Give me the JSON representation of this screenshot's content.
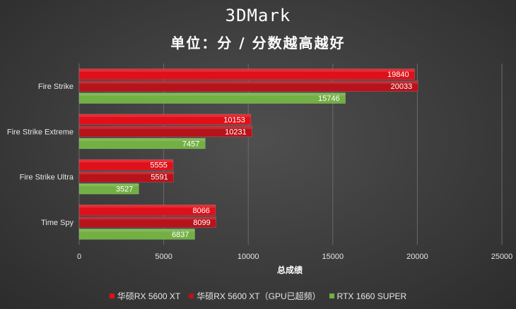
{
  "chart_data": {
    "type": "bar",
    "orientation": "horizontal",
    "title": "3DMark",
    "subtitle": "单位：分 / 分数越高越好",
    "xlabel": "总成绩",
    "categories": [
      "Fire Strike",
      "Fire Strike Extreme",
      "Fire Strike Ultra",
      "Time Spy"
    ],
    "series": [
      {
        "name": "华硕RX 5600 XT",
        "color": "#e0101a",
        "values": [
          19840,
          10153,
          5555,
          8066
        ]
      },
      {
        "name": "华硕RX 5600 XT（GPU已超频）",
        "color": "#b8121a",
        "values": [
          20033,
          10231,
          5591,
          8099
        ]
      },
      {
        "name": "RTX 1660 SUPER",
        "color": "#72b043",
        "values": [
          15746,
          7457,
          3527,
          6837
        ]
      }
    ],
    "xlim": [
      0,
      25000
    ],
    "xticks": [
      0,
      5000,
      10000,
      15000,
      20000,
      25000
    ],
    "xtick_labels": [
      "0",
      "5000",
      "10000",
      "15000",
      "20000",
      "25000"
    ],
    "grid": "vertical",
    "legend_position": "bottom"
  }
}
